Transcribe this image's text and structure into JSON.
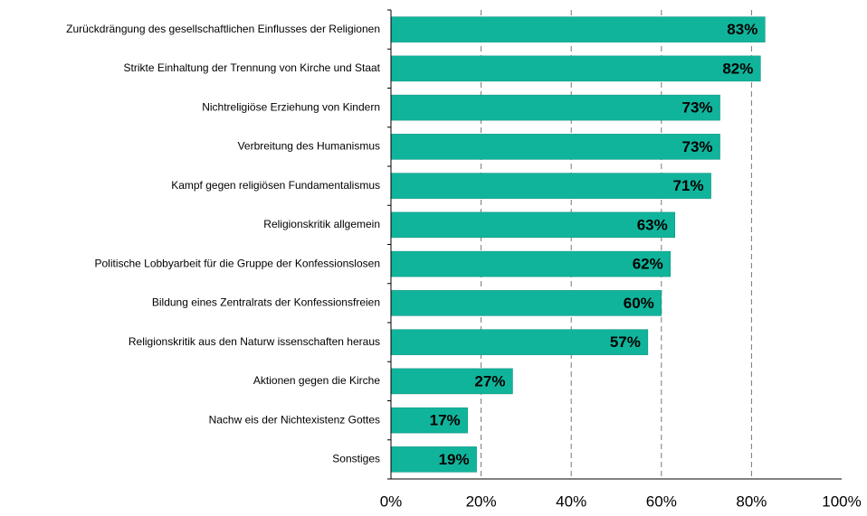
{
  "chart_data": {
    "type": "barh",
    "categories": [
      "Zurückdrängung des gesellschaftlichen Einflusses der Religionen",
      "Strikte Einhaltung der Trennung von Kirche und Staat",
      "Nichtreligiöse Erziehung von Kindern",
      "Verbreitung des Humanismus",
      "Kampf gegen religiösen Fundamentalismus",
      "Religionskritik allgemein",
      "Politische Lobbyarbeit für die Gruppe der Konfessionslosen",
      "Bildung eines Zentralrats der Konfessionsfreien",
      "Religionskritik aus den Naturw issenschaften heraus",
      "Aktionen gegen die Kirche",
      "Nachw eis der Nichtexistenz Gottes",
      "Sonstiges"
    ],
    "values": [
      83,
      82,
      73,
      73,
      71,
      63,
      62,
      60,
      57,
      27,
      17,
      19
    ],
    "value_labels": [
      "83%",
      "82%",
      "73%",
      "73%",
      "71%",
      "63%",
      "62%",
      "60%",
      "57%",
      "27%",
      "17%",
      "19%"
    ],
    "color": "#10b49b",
    "xlim": [
      0,
      100
    ],
    "xticks": [
      {
        "value": 0,
        "label": "0%"
      },
      {
        "value": 20,
        "label": "20%"
      },
      {
        "value": 40,
        "label": "40%"
      },
      {
        "value": 60,
        "label": "60%"
      },
      {
        "value": 80,
        "label": "80%"
      },
      {
        "value": 100,
        "label": "100%"
      }
    ],
    "grid": true
  }
}
